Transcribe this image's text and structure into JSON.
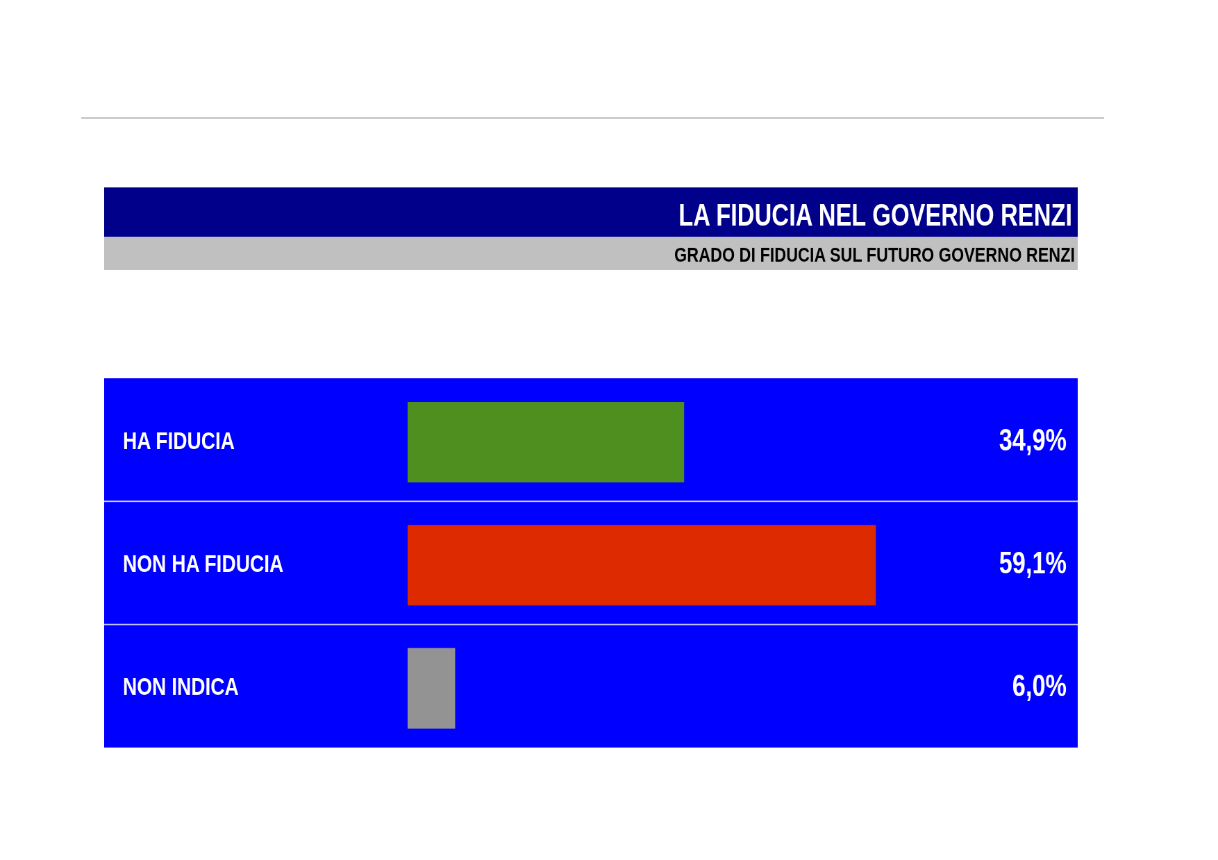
{
  "chart_data": {
    "type": "bar",
    "orientation": "horizontal",
    "title": "LA FIDUCIA NEL GOVERNO RENZI",
    "subtitle": "GRADO DI FIDUCIA SUL FUTURO GOVERNO RENZI",
    "categories": [
      "HA FIDUCIA",
      "NON HA FIDUCIA",
      "NON INDICA"
    ],
    "values": [
      34.9,
      59.1,
      6.0
    ],
    "colors": [
      "#4e8f20",
      "#dd2a00",
      "#939393"
    ],
    "value_labels": [
      "34,9%",
      "59,1%",
      "6,0%"
    ]
  }
}
